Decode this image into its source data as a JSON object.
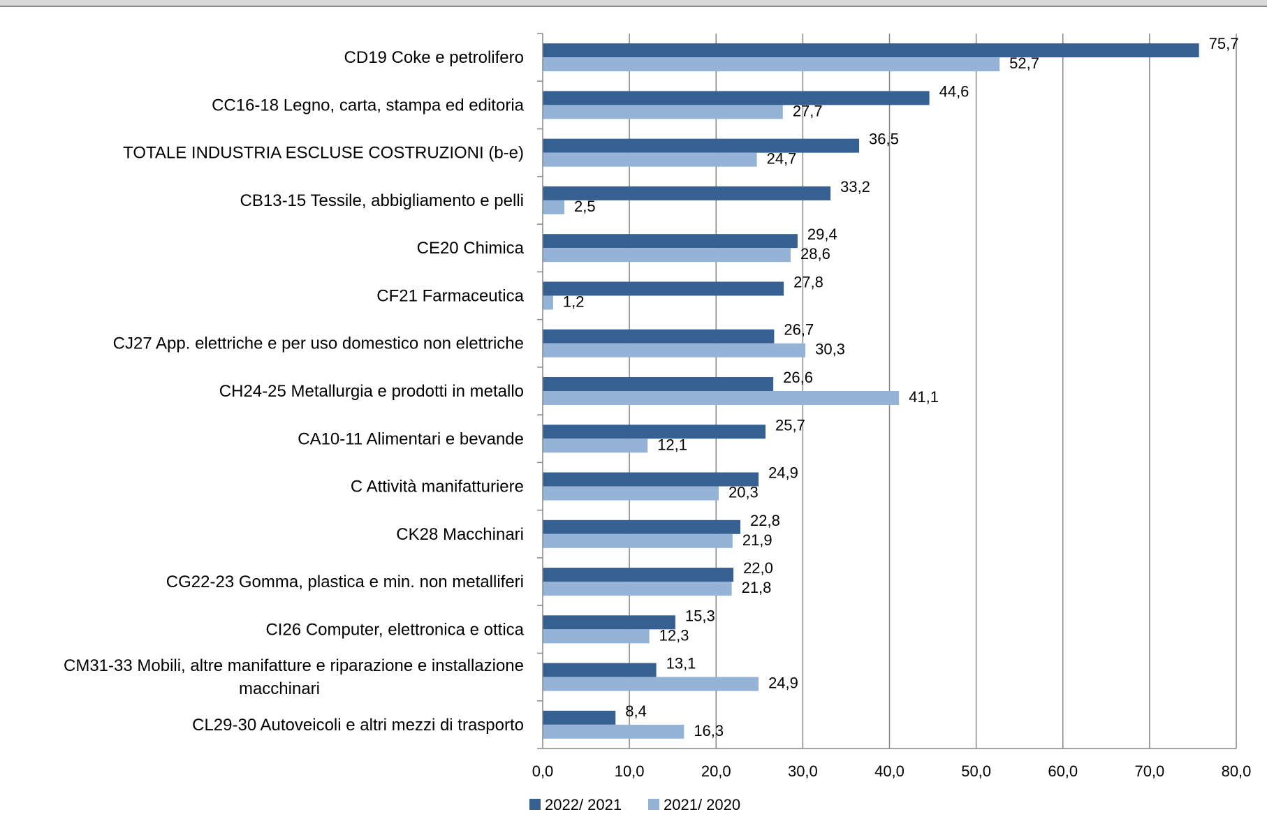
{
  "colors": {
    "series_2022_2021": "#366092",
    "series_2021_2020": "#95b3d7",
    "grid": "#868686",
    "top_bar": "#d9d9d9"
  },
  "chart_data": {
    "type": "bar",
    "orientation": "horizontal",
    "title": "",
    "xlabel": "",
    "ylabel": "",
    "xlim": [
      0,
      80
    ],
    "xticks": [
      "0,0",
      "10,0",
      "20,0",
      "30,0",
      "40,0",
      "50,0",
      "60,0",
      "70,0",
      "80,0"
    ],
    "grid": true,
    "legend_position": "bottom",
    "categories": [
      "CD19   Coke e petrolifero",
      "CC16-18  Legno, carta, stampa ed editoria",
      "TOTALE INDUSTRIA ESCLUSE COSTRUZIONI (b-e)",
      "CB13-15   Tessile, abbigliamento e pelli",
      "CE20   Chimica",
      "CF21   Farmaceutica",
      "CJ27   App. elettriche e per uso domestico non elettriche",
      "CH24-25   Metallurgia e prodotti in metallo",
      "CA10-11   Alimentari e bevande",
      "C   Attività manifatturiere",
      "CK28   Macchinari",
      "CG22-23   Gomma, plastica e min. non metalliferi",
      "CI26   Computer, elettronica e ottica",
      "CM31-33    Mobili, altre manifatture e riparazione e installazione macchinari",
      "CL29-30   Autoveicoli e altri mezzi di trasporto"
    ],
    "category_lines": [
      [
        "CD19   Coke e petrolifero"
      ],
      [
        "CC16-18  Legno, carta, stampa ed editoria"
      ],
      [
        "TOTALE INDUSTRIA ESCLUSE COSTRUZIONI (b-e)"
      ],
      [
        "CB13-15   Tessile, abbigliamento e pelli"
      ],
      [
        "CE20   Chimica"
      ],
      [
        "CF21   Farmaceutica"
      ],
      [
        "CJ27   App. elettriche e per uso domestico non elettriche"
      ],
      [
        "CH24-25   Metallurgia e prodotti in metallo"
      ],
      [
        "CA10-11   Alimentari e bevande"
      ],
      [
        "C   Attività manifatturiere"
      ],
      [
        "CK28   Macchinari"
      ],
      [
        "CG22-23   Gomma, plastica e min. non metalliferi"
      ],
      [
        "CI26   Computer, elettronica e ottica"
      ],
      [
        "CM31-33    Mobili, altre manifatture e riparazione e installazione",
        "macchinari"
      ],
      [
        "CL29-30   Autoveicoli e altri mezzi di trasporto"
      ]
    ],
    "series": [
      {
        "name": "2022/ 2021",
        "color": "#366092",
        "values": [
          75.7,
          44.6,
          36.5,
          33.2,
          29.4,
          27.8,
          26.7,
          26.6,
          25.7,
          24.9,
          22.8,
          22.0,
          15.3,
          13.1,
          8.4
        ],
        "labels": [
          "75,7",
          "44,6",
          "36,5",
          "33,2",
          "29,4",
          "27,8",
          "26,7",
          "26,6",
          "25,7",
          "24,9",
          "22,8",
          "22,0",
          "15,3",
          "13,1",
          "8,4"
        ]
      },
      {
        "name": "2021/ 2020",
        "color": "#95b3d7",
        "values": [
          52.7,
          27.7,
          24.7,
          2.5,
          28.6,
          1.2,
          30.3,
          41.1,
          12.1,
          20.3,
          21.9,
          21.8,
          12.3,
          24.9,
          16.3
        ],
        "labels": [
          "52,7",
          "27,7",
          "24,7",
          "2,5",
          "28,6",
          "1,2",
          "30,3",
          "41,1",
          "12,1",
          "20,3",
          "21,9",
          "21,8",
          "12,3",
          "24,9",
          "16,3"
        ]
      }
    ]
  }
}
